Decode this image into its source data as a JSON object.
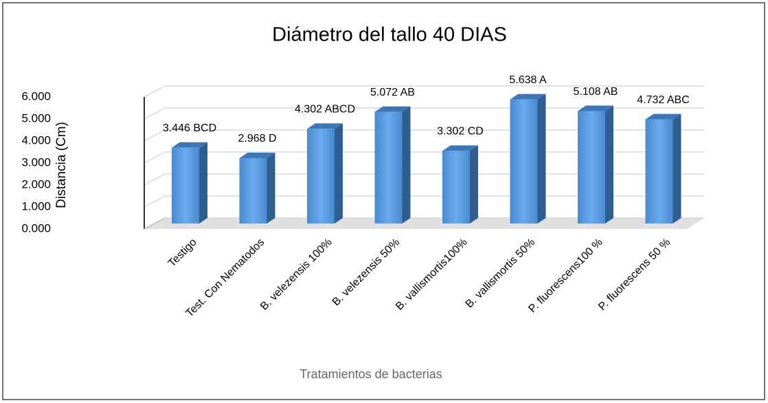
{
  "chart_data": {
    "type": "bar3d",
    "title": "Diámetro del tallo 40 DIAS",
    "y_label": "Distancia (Cm)",
    "x_label": "Tratamientos de bacterias",
    "categories": [
      "Testigo",
      "Test. Con Nematodos",
      "B. velezensis 100%",
      "B. velezensis  50%",
      "B. vallismortis100%",
      "B. vallismortis 50%",
      "P. fluorescens100 %",
      "P. fluorescens 50 %"
    ],
    "values": [
      3.446,
      2.968,
      4.302,
      5.072,
      3.302,
      5.638,
      5.108,
      4.732
    ],
    "value_labels": [
      "3.446 BCD",
      "2.968 D",
      "4.302 ABCD",
      "5.072 AB",
      "3.302 CD",
      "5.638 A",
      "5.108 AB",
      "4.732 ABC"
    ],
    "color": "#5b9bd5",
    "ylim": [
      0,
      6
    ],
    "yticks": [
      {
        "value": 0,
        "label": "0.000"
      },
      {
        "value": 1,
        "label": "1.000"
      },
      {
        "value": 2,
        "label": "2.000"
      },
      {
        "value": 3,
        "label": "3.000"
      },
      {
        "value": 4,
        "label": "4.000"
      },
      {
        "value": 5,
        "label": "5.000"
      },
      {
        "value": 6,
        "label": "6.000"
      }
    ],
    "grid": true
  }
}
